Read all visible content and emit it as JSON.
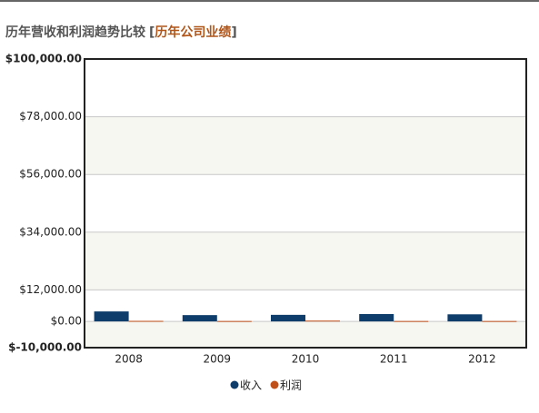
{
  "chart_data": {
    "type": "bar",
    "title": "历年营收和利润趋势比较",
    "bracket_open": "[",
    "link": "历年公司业绩",
    "bracket_close": "]",
    "categories": [
      "2008",
      "2009",
      "2010",
      "2011",
      "2012"
    ],
    "series": [
      {
        "name": "收入",
        "color": "#0f3d6b",
        "values": [
          3800,
          2400,
          2500,
          2800,
          2700
        ]
      },
      {
        "name": "利润",
        "color": "#c0501a",
        "values": [
          200,
          150,
          300,
          150,
          150
        ]
      }
    ],
    "ylim": [
      -10000,
      100000
    ],
    "yticks": [
      {
        "value": -10000,
        "label": "$-10,000.00"
      },
      {
        "value": 0,
        "label": "$0.00"
      },
      {
        "value": 12000,
        "label": "$12,000.00"
      },
      {
        "value": 34000,
        "label": "$34,000.00"
      },
      {
        "value": 56000,
        "label": "$56,000.00"
      },
      {
        "value": 78000,
        "label": "$78,000.00"
      },
      {
        "value": 100000,
        "label": "$100,000.00"
      }
    ],
    "grid": true,
    "legend": "bottom"
  }
}
